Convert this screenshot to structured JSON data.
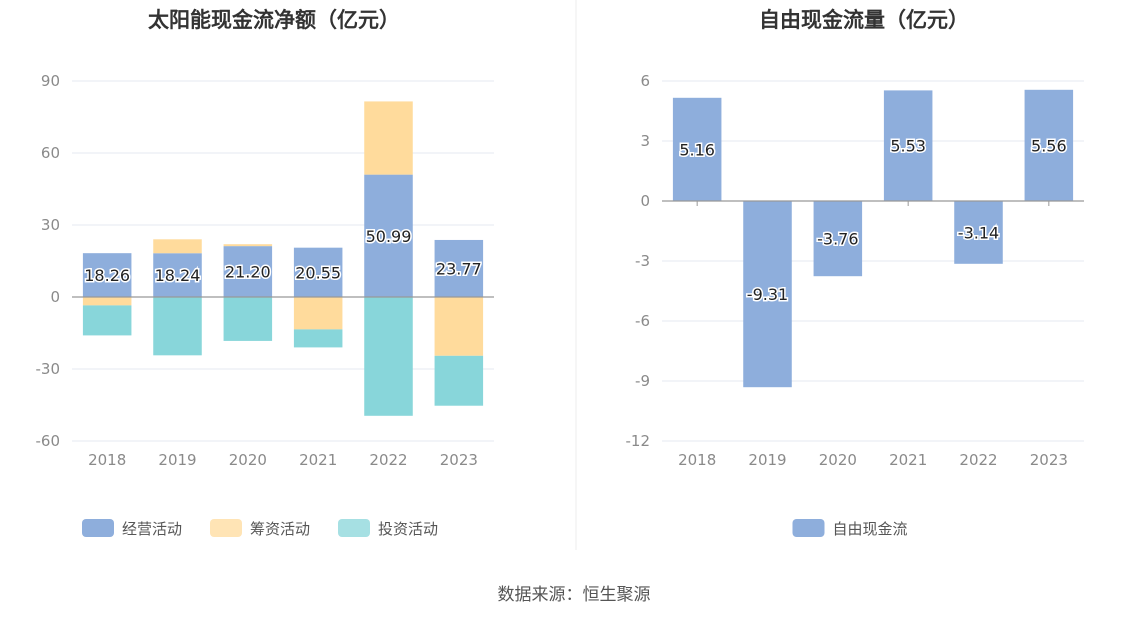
{
  "chart_data": [
    {
      "type": "bar",
      "stacked": true,
      "title": "太阳能现金流净额（亿元）",
      "categories": [
        "2018",
        "2019",
        "2020",
        "2021",
        "2022",
        "2023"
      ],
      "ylim": [
        -60,
        90
      ],
      "yticks": [
        90,
        60,
        30,
        0,
        -30,
        -60
      ],
      "grid": true,
      "legend_position": "bottom",
      "series": [
        {
          "name": "经营活动",
          "color": "#8eaedc",
          "values": [
            18.26,
            18.24,
            21.2,
            20.55,
            50.99,
            23.77
          ],
          "labels": [
            "18.26",
            "18.24",
            "21.20",
            "20.55",
            "50.99",
            "23.77"
          ]
        },
        {
          "name": "筹资活动",
          "color": "#ffdb9c",
          "values": [
            -3.5,
            5.8,
            0.8,
            -13.5,
            30.5,
            -24.5
          ]
        },
        {
          "name": "投资活动",
          "color": "#88d6da",
          "values": [
            -12.5,
            -24.3,
            -18.3,
            -7.5,
            -49.5,
            -20.8
          ]
        }
      ]
    },
    {
      "type": "bar",
      "title": "自由现金流量（亿元）",
      "categories": [
        "2018",
        "2019",
        "2020",
        "2021",
        "2022",
        "2023"
      ],
      "ylim": [
        -12,
        6
      ],
      "yticks": [
        6,
        3,
        0,
        -3,
        -6,
        -9,
        -12
      ],
      "grid": true,
      "legend_position": "bottom",
      "series": [
        {
          "name": "自由现金流",
          "color": "#8eaedc",
          "values": [
            5.16,
            -9.31,
            -3.76,
            5.53,
            -3.14,
            5.56
          ],
          "labels": [
            "5.16",
            "-9.31",
            "-3.76",
            "5.53",
            "-3.14",
            "5.56"
          ]
        }
      ]
    }
  ],
  "footer": {
    "source": "数据来源：恒生聚源"
  }
}
